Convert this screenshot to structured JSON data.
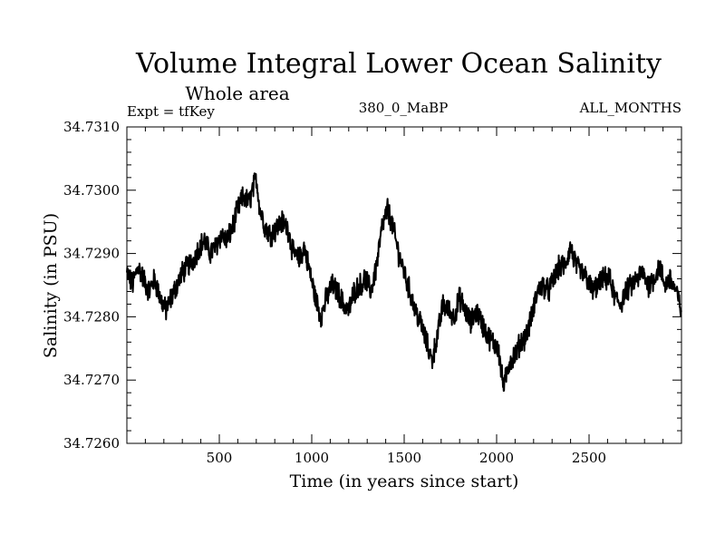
{
  "chart_data": {
    "type": "line",
    "title": "Volume Integral Lower Ocean Salinity",
    "subtitle": "Whole area",
    "experiment_label": "Expt = tfKey",
    "run_label": "380_0_MaBP",
    "period_label": "ALL_MONTHS",
    "xlabel": "Time (in years since start)",
    "ylabel": "Salinity (in PSU)",
    "xlim": [
      0,
      3000
    ],
    "ylim": [
      34.726,
      34.731
    ],
    "xticks": [
      500,
      1000,
      1500,
      2000,
      2500
    ],
    "xtick_labels": [
      "500",
      "1000",
      "1500",
      "2000",
      "2500"
    ],
    "yticks": [
      34.726,
      34.727,
      34.728,
      34.729,
      34.73,
      34.731
    ],
    "ytick_labels": [
      "34.7260",
      "34.7270",
      "34.7280",
      "34.7290",
      "34.7300",
      "34.7310"
    ],
    "grid": false,
    "line_color": "#000000",
    "series": [
      {
        "x": [
          0,
          30,
          60,
          90,
          120,
          150,
          180,
          210,
          240,
          270,
          300,
          330,
          360,
          390,
          420,
          450,
          480,
          510,
          540,
          570,
          600,
          630,
          660,
          690,
          700,
          720,
          750,
          780,
          810,
          840,
          870,
          900,
          930,
          960,
          990,
          1020,
          1050,
          1080,
          1110,
          1140,
          1170,
          1200,
          1230,
          1260,
          1290,
          1320,
          1350,
          1380,
          1410,
          1440,
          1470,
          1500,
          1530,
          1560,
          1590,
          1620,
          1650,
          1680,
          1710,
          1740,
          1770,
          1800,
          1830,
          1860,
          1890,
          1920,
          1950,
          1980,
          2010,
          2025,
          2040,
          2070,
          2100,
          2130,
          2160,
          2190,
          2220,
          2250,
          2280,
          2310,
          2340,
          2370,
          2400,
          2430,
          2460,
          2490,
          2520,
          2550,
          2580,
          2610,
          2640,
          2670,
          2700,
          2730,
          2760,
          2790,
          2820,
          2850,
          2880,
          2910,
          2940,
          2970,
          3000
        ],
        "values": [
          34.7287,
          34.7285,
          34.7288,
          34.7286,
          34.7284,
          34.7286,
          34.7283,
          34.7281,
          34.7283,
          34.7285,
          34.7287,
          34.7288,
          34.7289,
          34.7291,
          34.7292,
          34.729,
          34.7291,
          34.7293,
          34.7292,
          34.7294,
          34.7297,
          34.7299,
          34.7298,
          34.7301,
          34.7302,
          34.7297,
          34.7294,
          34.7293,
          34.7294,
          34.7295,
          34.7294,
          34.729,
          34.7289,
          34.7291,
          34.7287,
          34.7283,
          34.728,
          34.7283,
          34.7285,
          34.7284,
          34.7282,
          34.7281,
          34.7284,
          34.7285,
          34.7286,
          34.7284,
          34.7288,
          34.7294,
          34.7297,
          34.7294,
          34.729,
          34.7287,
          34.7284,
          34.7281,
          34.7279,
          34.7276,
          34.7273,
          34.7277,
          34.7282,
          34.7281,
          34.728,
          34.7283,
          34.7281,
          34.7279,
          34.7281,
          34.7279,
          34.7277,
          34.7276,
          34.7275,
          34.7271,
          34.7269,
          34.7273,
          34.7274,
          34.7276,
          34.7277,
          34.728,
          34.7284,
          34.7285,
          34.7284,
          34.7286,
          34.7288,
          34.7288,
          34.7291,
          34.7288,
          34.7287,
          34.7286,
          34.7284,
          34.7285,
          34.7286,
          34.7286,
          34.7283,
          34.7282,
          34.7284,
          34.7285,
          34.7286,
          34.7287,
          34.7285,
          34.7286,
          34.7288,
          34.7285,
          34.7286,
          34.7284,
          34.7281
        ]
      }
    ]
  }
}
